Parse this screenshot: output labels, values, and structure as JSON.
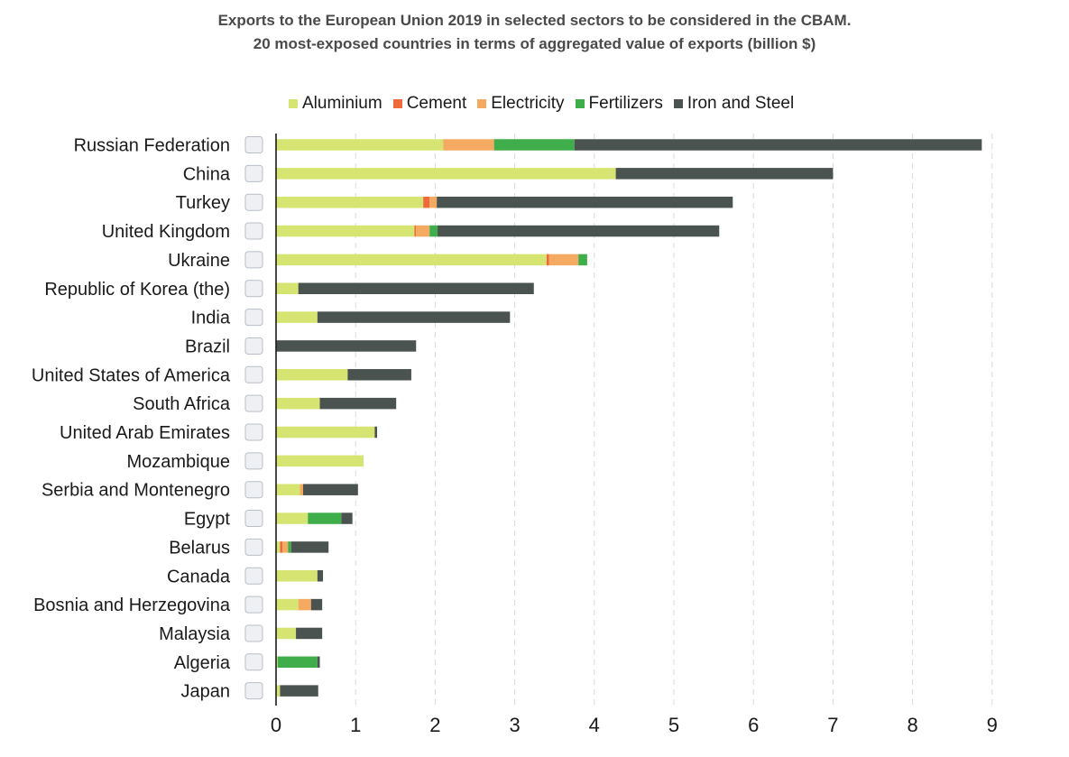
{
  "title": {
    "line1": "Exports to the European Union 2019 in selected sectors to be considered in the CBAM.",
    "line2": "20 most-exposed countries in terms of aggregated value of exports (billion $)"
  },
  "colors": {
    "Aluminium": "#d6e571",
    "Cement": "#ee6a3a",
    "Electricity": "#f5aa62",
    "Fertilizers": "#3fad4a",
    "Iron and Steel": "#4b5350"
  },
  "chart_data": {
    "type": "bar",
    "orientation": "horizontal",
    "stacked": true,
    "title": "Exports to the European Union 2019 in selected sectors to be considered in the CBAM. 20 most-exposed countries in terms of aggregated value of exports (billion $)",
    "xlabel": "",
    "ylabel": "",
    "xlim": [
      0,
      9
    ],
    "xticks": [
      0,
      1,
      2,
      3,
      4,
      5,
      6,
      7,
      8,
      9
    ],
    "grid": "vertical dashed",
    "legend_position": "top",
    "categories": [
      "Russian Federation",
      "China",
      "Turkey",
      "United Kingdom",
      "Ukraine",
      "Republic of Korea (the)",
      "India",
      "Brazil",
      "United States of America",
      "South Africa",
      "United Arab Emirates",
      "Mozambique",
      "Serbia and Montenegro",
      "Egypt",
      "Belarus",
      "Canada",
      "Bosnia and Herzegovina",
      "Malaysia",
      "Algeria",
      "Japan"
    ],
    "series": [
      {
        "name": "Aluminium",
        "values": [
          2.1,
          4.27,
          1.85,
          1.74,
          3.4,
          0.28,
          0.52,
          0.0,
          0.9,
          0.55,
          1.24,
          1.1,
          0.3,
          0.4,
          0.05,
          0.52,
          0.28,
          0.25,
          0.02,
          0.05
        ]
      },
      {
        "name": "Cement",
        "values": [
          0.0,
          0.0,
          0.08,
          0.02,
          0.03,
          0.0,
          0.0,
          0.0,
          0.0,
          0.0,
          0.0,
          0.0,
          0.0,
          0.0,
          0.03,
          0.0,
          0.0,
          0.0,
          0.0,
          0.0
        ]
      },
      {
        "name": "Electricity",
        "values": [
          0.64,
          0.0,
          0.09,
          0.17,
          0.37,
          0.0,
          0.0,
          0.0,
          0.0,
          0.0,
          0.0,
          0.0,
          0.04,
          0.0,
          0.07,
          0.0,
          0.16,
          0.0,
          0.0,
          0.0
        ]
      },
      {
        "name": "Fertilizers",
        "values": [
          1.01,
          0.0,
          0.0,
          0.1,
          0.11,
          0.0,
          0.0,
          0.0,
          0.0,
          0.0,
          0.0,
          0.0,
          0.0,
          0.42,
          0.04,
          0.0,
          0.0,
          0.0,
          0.5,
          0.0
        ]
      },
      {
        "name": "Iron and Steel",
        "values": [
          5.12,
          2.73,
          3.72,
          3.54,
          0.0,
          2.96,
          2.42,
          1.76,
          0.8,
          0.96,
          0.03,
          0.0,
          0.69,
          0.14,
          0.47,
          0.07,
          0.14,
          0.33,
          0.03,
          0.48
        ]
      }
    ]
  }
}
